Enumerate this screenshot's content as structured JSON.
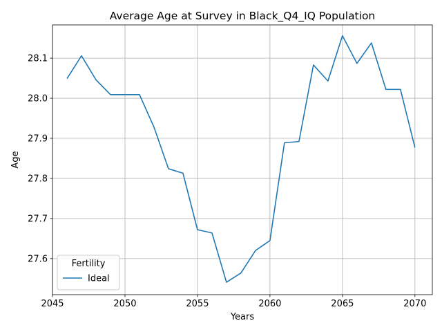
{
  "chart_data": {
    "type": "line",
    "title": "Average Age at Survey in Black_Q4_IQ Population",
    "xlabel": "Years",
    "ylabel": "Age",
    "xlim": [
      2045.0,
      2071.2
    ],
    "ylim": [
      27.51,
      28.183
    ],
    "xticks": [
      2045,
      2050,
      2055,
      2060,
      2065,
      2070
    ],
    "yticks": [
      27.6,
      27.7,
      27.8,
      27.9,
      28.0,
      28.1
    ],
    "xtick_labels": [
      "2045",
      "2050",
      "2055",
      "2060",
      "2065",
      "2070"
    ],
    "ytick_labels": [
      "27.6",
      "27.7",
      "27.8",
      "27.9",
      "28.0",
      "28.1"
    ],
    "grid": true,
    "legend": {
      "title": "Fertility",
      "placement": "lower-left"
    },
    "series": [
      {
        "name": "Ideal",
        "color": "#1f77b4",
        "x": [
          2046,
          2047,
          2048,
          2049,
          2050,
          2051,
          2052,
          2053,
          2054,
          2055,
          2056,
          2057,
          2058,
          2059,
          2060,
          2061,
          2062,
          2063,
          2064,
          2065,
          2066,
          2067,
          2068,
          2069,
          2070
        ],
        "y": [
          28.049,
          28.106,
          28.046,
          28.009,
          28.009,
          28.009,
          27.928,
          27.824,
          27.813,
          27.672,
          27.664,
          27.541,
          27.564,
          27.62,
          27.645,
          27.889,
          27.892,
          28.083,
          28.043,
          28.156,
          28.087,
          28.138,
          28.022,
          28.022,
          27.877
        ]
      }
    ]
  }
}
